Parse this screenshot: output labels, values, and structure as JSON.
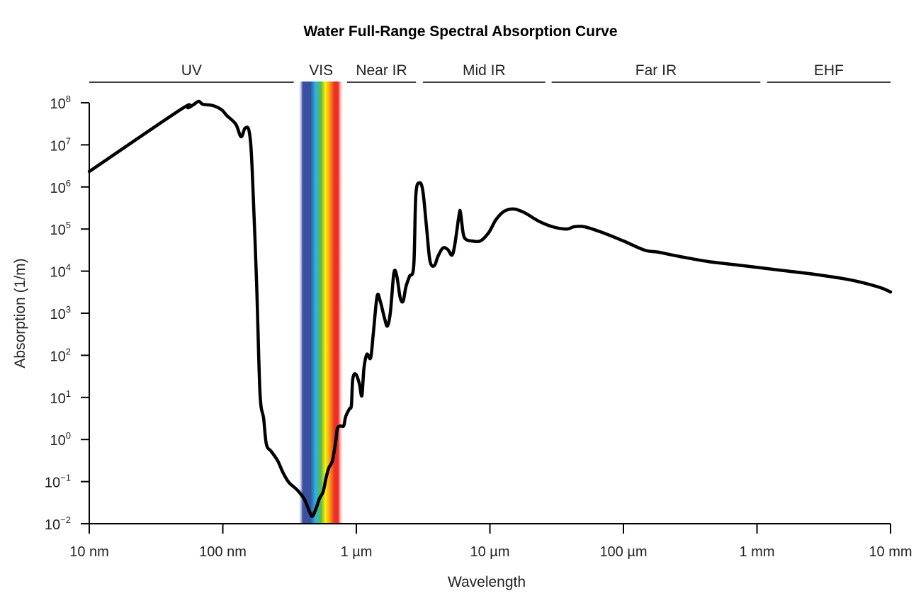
{
  "chart_data": {
    "type": "line",
    "title": "Water Full-Range Spectral Absorption Curve",
    "xlabel": "Wavelength",
    "ylabel": "Absorption (1/m)",
    "x_scale": "log",
    "y_scale": "log",
    "x_unit": "nm",
    "xlim": [
      10,
      10000000
    ],
    "ylim": [
      0.01,
      100000000
    ],
    "grid": false,
    "xticks": [
      {
        "value": 10,
        "label": "10 nm"
      },
      {
        "value": 100,
        "label": "100 nm"
      },
      {
        "value": 1000,
        "label": "1 µm"
      },
      {
        "value": 10000,
        "label": "10 µm"
      },
      {
        "value": 100000,
        "label": "100 µm"
      },
      {
        "value": 1000000,
        "label": "1 mm"
      },
      {
        "value": 10000000,
        "label": "10 mm"
      }
    ],
    "yticks": [
      {
        "value": 100000000,
        "base": "10",
        "exp": "8"
      },
      {
        "value": 10000000,
        "base": "10",
        "exp": "7"
      },
      {
        "value": 1000000,
        "base": "10",
        "exp": "6"
      },
      {
        "value": 100000,
        "base": "10",
        "exp": "5"
      },
      {
        "value": 10000,
        "base": "10",
        "exp": "4"
      },
      {
        "value": 1000,
        "base": "10",
        "exp": "3"
      },
      {
        "value": 100,
        "base": "10",
        "exp": "2"
      },
      {
        "value": 10,
        "base": "10",
        "exp": "1"
      },
      {
        "value": 1,
        "base": "10",
        "exp": "0"
      },
      {
        "value": 0.1,
        "base": "10",
        "exp": "−1"
      },
      {
        "value": 0.01,
        "base": "10",
        "exp": "−2"
      }
    ],
    "regions": [
      {
        "name": "UV",
        "from": 10,
        "to": 340,
        "line": true
      },
      {
        "name": "VIS",
        "from": 370,
        "to": 800,
        "line": false
      },
      {
        "name": "Near IR",
        "from": 850,
        "to": 2800,
        "line": true
      },
      {
        "name": "Mid IR",
        "from": 3150,
        "to": 26000,
        "line": true
      },
      {
        "name": "Far IR",
        "from": 29000,
        "to": 1060000,
        "line": true
      },
      {
        "name": "EHF",
        "from": 1190000,
        "to": 10000000,
        "line": true
      }
    ],
    "visible_band": {
      "from": 367,
      "to": 803,
      "colors": [
        "#3a4fa0",
        "#27b5e5",
        "#5cb84a",
        "#fff200",
        "#f7941d",
        "#ee2e24"
      ]
    },
    "series": [
      {
        "color": "#000000",
        "x": [
          10,
          48,
          55,
          60,
          66,
          71,
          84,
          98,
          107,
          125,
          137,
          147,
          158,
          166,
          179,
          190,
          202,
          212,
          231,
          258,
          284,
          313,
          363,
          410,
          447,
          469,
          499,
          530,
          564,
          592,
          621,
          661,
          702,
          720,
          755,
          803,
          832,
          885,
          918,
          940,
          988,
          1050,
          1100,
          1140,
          1200,
          1280,
          1340,
          1430,
          1510,
          1630,
          1710,
          1800,
          1910,
          2010,
          2130,
          2240,
          2350,
          2500,
          2690,
          2790,
          2970,
          3150,
          3350,
          3560,
          3830,
          4080,
          4440,
          4830,
          5200,
          5460,
          5880,
          6020,
          6320,
          6640,
          7320,
          8480,
          9820,
          11100,
          12800,
          15100,
          18100,
          23100,
          29500,
          37600,
          42500,
          51100,
          69300,
          100000,
          144000,
          184000,
          265000,
          433000,
          798000,
          1470000,
          2700000,
          4990000,
          8130000,
          10000000
        ],
        "y": [
          2330000,
          68000000,
          76000000,
          89000000,
          108000000,
          92000000,
          86000000,
          68000000,
          50000000,
          31000000,
          15600000,
          25000000,
          20000000,
          2500000,
          5100,
          12.5,
          3.2,
          0.77,
          0.52,
          0.31,
          0.157,
          0.095,
          0.062,
          0.037,
          0.019,
          0.015,
          0.023,
          0.04,
          0.057,
          0.119,
          0.21,
          0.31,
          0.93,
          1.8,
          2.1,
          2.1,
          3.5,
          5.3,
          6.5,
          27,
          36,
          22,
          11,
          49,
          106,
          87,
          338,
          2540,
          1930,
          733,
          498,
          1080,
          9100,
          7500,
          2340,
          1930,
          4200,
          7500,
          13400,
          650000,
          1250000,
          790000,
          113000,
          17600,
          13400,
          22200,
          35400,
          32700,
          24000,
          43000,
          219000,
          246000,
          76900,
          56400,
          52100,
          52100,
          83000,
          167000,
          265000,
          299000,
          246000,
          155000,
          113000,
          100000,
          113000,
          113000,
          83000,
          52100,
          31500,
          28100,
          22200,
          16900,
          13400,
          10600,
          8400,
          6200,
          4200,
          3200
        ]
      }
    ]
  }
}
